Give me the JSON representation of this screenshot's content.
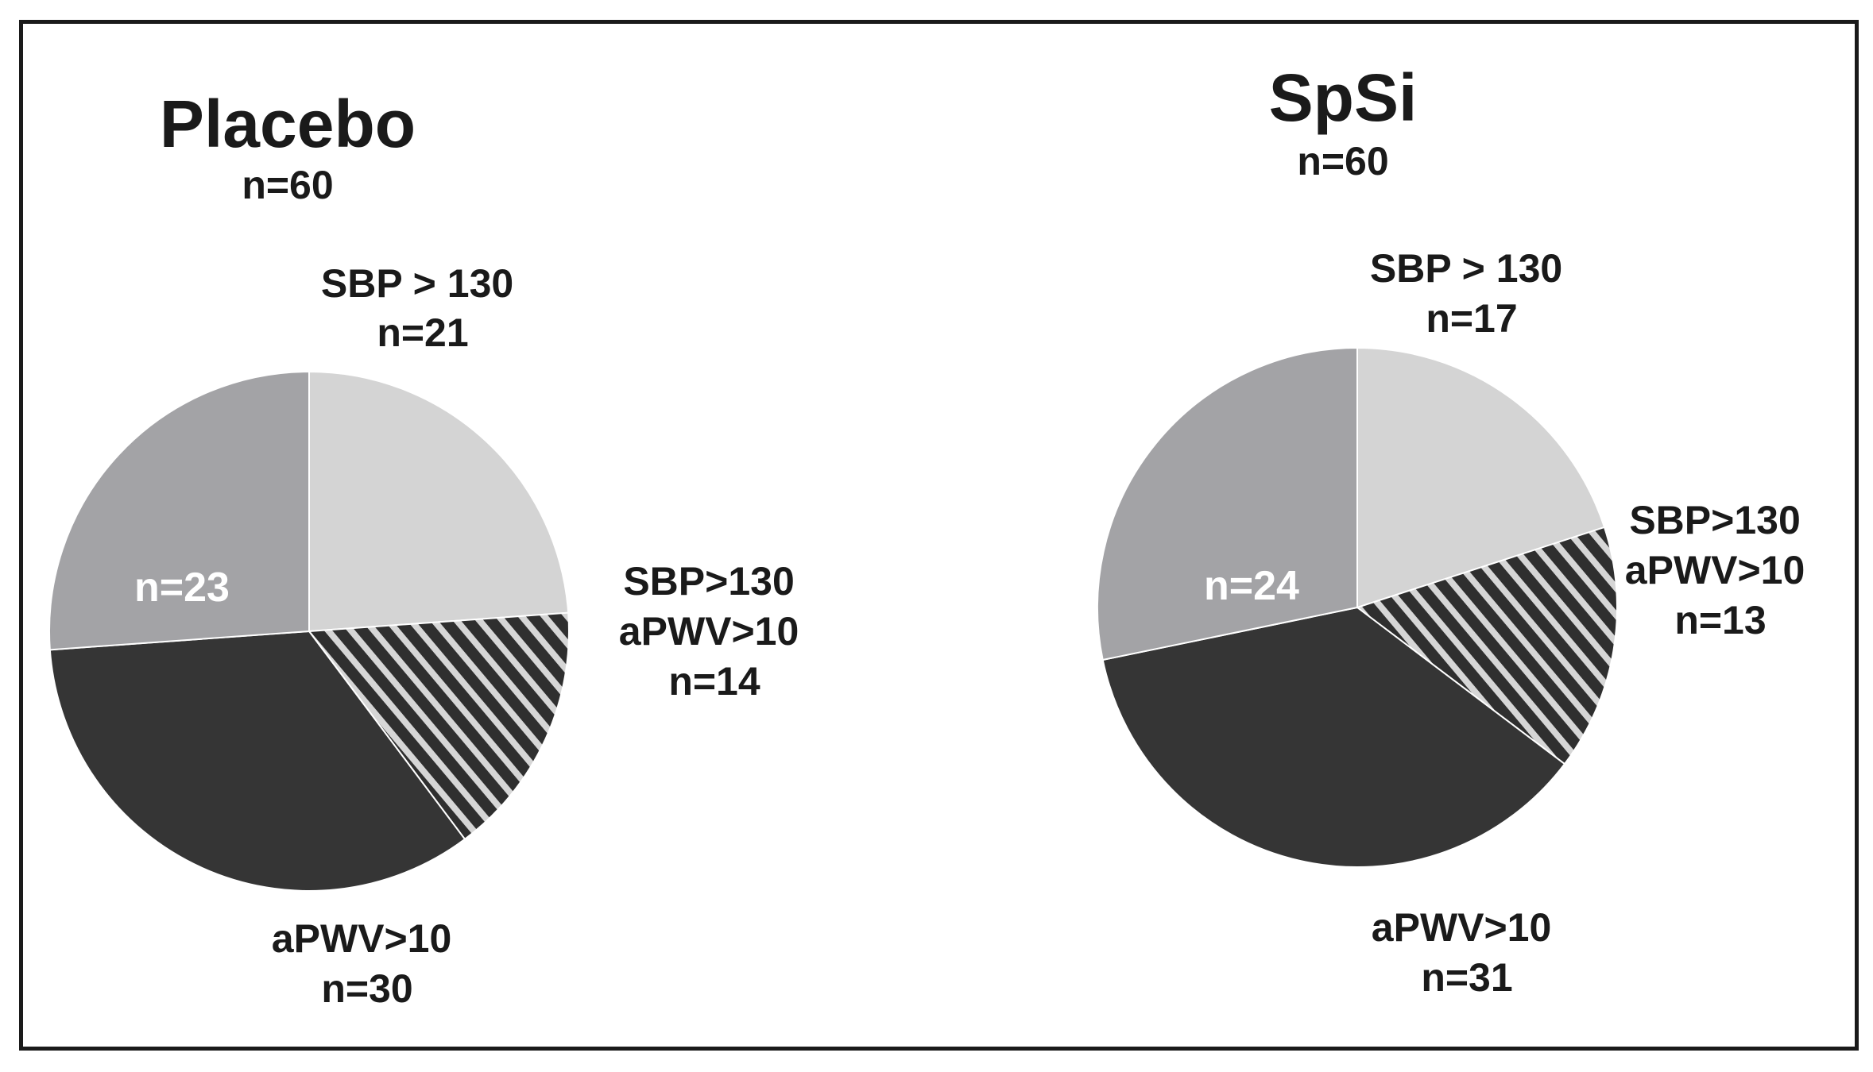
{
  "chart_data": [
    {
      "type": "pie",
      "title": "Placebo",
      "subtitle": "n=60",
      "slices": [
        {
          "label_lines": [
            "SBP > 130",
            "n=21"
          ],
          "value": 21,
          "fill": "#d4d4d4",
          "pattern": "none"
        },
        {
          "label_lines": [
            "SBP>130",
            "aPWV>10",
            "n=14"
          ],
          "value": 14,
          "fill": "#2f2f2f",
          "pattern": "diagonal-hatch"
        },
        {
          "label_lines": [
            "aPWV>10",
            "n=30"
          ],
          "value": 30,
          "fill": "#353535",
          "pattern": "none"
        },
        {
          "label_lines": [
            "n=23"
          ],
          "value": 23,
          "fill": "#a3a3a6",
          "pattern": "none"
        }
      ]
    },
    {
      "type": "pie",
      "title": "SpSi",
      "subtitle": "n=60",
      "slices": [
        {
          "label_lines": [
            "SBP > 130",
            "n=17"
          ],
          "value": 17,
          "fill": "#d4d4d4",
          "pattern": "none"
        },
        {
          "label_lines": [
            "SBP>130",
            "aPWV>10",
            "n=13"
          ],
          "value": 13,
          "fill": "#2f2f2f",
          "pattern": "diagonal-hatch"
        },
        {
          "label_lines": [
            "aPWV>10",
            "n=31"
          ],
          "value": 31,
          "fill": "#353535",
          "pattern": "none"
        },
        {
          "label_lines": [
            "n=24"
          ],
          "value": 24,
          "fill": "#a3a3a6",
          "pattern": "none"
        }
      ]
    }
  ]
}
